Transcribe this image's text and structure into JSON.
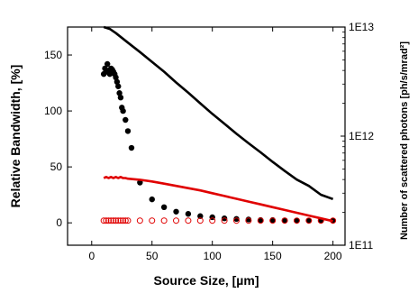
{
  "chart_data": {
    "type": "scatter",
    "xlabel": "Source Size, [µm]",
    "ylabel": "Relative Bandwidth, [%]",
    "y2label": "Number of scattered photons [ph/s/mrad²]",
    "xlim": [
      -20,
      210
    ],
    "ylim": [
      -20,
      175
    ],
    "y2lim_log10": [
      11,
      13
    ],
    "x_ticks": [
      0,
      50,
      100,
      150,
      200
    ],
    "y_ticks": [
      0,
      50,
      100,
      150
    ],
    "y2_ticks": [
      {
        "label": "1E11",
        "log10": 11
      },
      {
        "label": "1E12",
        "log10": 12
      },
      {
        "label": "1E13",
        "log10": 13
      }
    ],
    "grid": false,
    "colors": {
      "black": "#000000",
      "red": "#e00000"
    },
    "series": [
      {
        "style": "filled-black-dots",
        "axis": "left",
        "x": [
          10,
          11,
          12,
          13,
          14,
          15,
          16,
          17,
          18,
          19,
          20,
          21,
          22,
          23,
          24,
          25,
          26,
          28,
          30,
          33,
          40,
          50,
          60,
          70,
          80,
          90,
          100,
          110,
          120,
          130,
          140,
          150,
          160,
          170,
          180,
          190,
          200
        ],
        "y": [
          133,
          138,
          135,
          142,
          136,
          133,
          138,
          137,
          135,
          133,
          130,
          126,
          122,
          116,
          112,
          103,
          100,
          92,
          82,
          67,
          36,
          21,
          14,
          10,
          8,
          6,
          5,
          4,
          3.5,
          3,
          2.5,
          2.5,
          2.2,
          2,
          2,
          2,
          2
        ]
      },
      {
        "style": "open-red-circles",
        "axis": "left",
        "x": [
          10,
          12,
          14,
          16,
          18,
          20,
          22,
          24,
          26,
          28,
          30,
          40,
          50,
          60,
          70,
          80,
          90,
          100,
          110,
          120,
          130,
          140,
          150,
          160,
          170,
          180,
          190,
          200
        ],
        "y": [
          2,
          2,
          2,
          2,
          2,
          2,
          2,
          2,
          2,
          2,
          2,
          2,
          2,
          2,
          2,
          2,
          2,
          2,
          2,
          2,
          2,
          2,
          2,
          2,
          2,
          2,
          2,
          2
        ]
      },
      {
        "style": "black-line",
        "axis": "right-log",
        "x": [
          10,
          15,
          20,
          30,
          40,
          50,
          60,
          70,
          80,
          90,
          100,
          110,
          120,
          130,
          140,
          150,
          160,
          170,
          180,
          190,
          200
        ],
        "y": [
          10000000000000.0,
          9600000000000.0,
          8800000000000.0,
          7200000000000.0,
          5900000000000.0,
          4800000000000.0,
          3900000000000.0,
          3100000000000.0,
          2500000000000.0,
          2000000000000.0,
          1600000000000.0,
          1300000000000.0,
          1050000000000.0,
          860000000000.0,
          710000000000.0,
          580000000000.0,
          480000000000.0,
          400000000000.0,
          350000000000.0,
          290000000000.0,
          265000000000.0
        ]
      },
      {
        "style": "red-line",
        "axis": "left",
        "x": [
          10,
          12,
          14,
          16,
          18,
          20,
          22,
          24,
          26,
          28,
          30,
          40,
          50,
          60,
          70,
          80,
          90,
          100,
          110,
          120,
          130,
          140,
          150,
          160,
          170,
          180,
          190,
          200
        ],
        "y": [
          40,
          41,
          40,
          41,
          40,
          41,
          40,
          41,
          40,
          40,
          39.5,
          38.5,
          37,
          35,
          33,
          31,
          29,
          26.5,
          24,
          21.5,
          19,
          16.5,
          14,
          11.5,
          9,
          6.5,
          4,
          1.5
        ]
      }
    ]
  }
}
